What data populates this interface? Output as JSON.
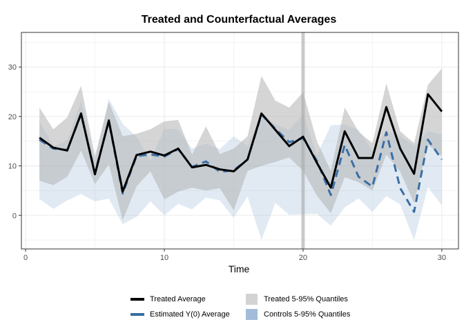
{
  "chart_data": {
    "type": "line",
    "title": "Treated and Counterfactual Averages",
    "xlabel": "Time",
    "ylabel": "",
    "xlim": [
      -0.3,
      31.2
    ],
    "ylim": [
      -6.8,
      37
    ],
    "x_ticks": [
      0,
      10,
      20,
      30
    ],
    "y_ticks": [
      0,
      10,
      20,
      30
    ],
    "grid": true,
    "treatment_time": 20,
    "legend_position": "bottom",
    "x": [
      1,
      2,
      3,
      4,
      5,
      6,
      7,
      8,
      9,
      10,
      11,
      12,
      13,
      14,
      15,
      16,
      17,
      18,
      19,
      20,
      21,
      22,
      23,
      24,
      25,
      26,
      27,
      28,
      29,
      30
    ],
    "series": [
      {
        "name": "Treated Average",
        "color": "#000000",
        "style": "solid",
        "values": [
          15.7,
          13.7,
          13.1,
          20.6,
          8.3,
          19.2,
          4.8,
          12.2,
          12.9,
          12.1,
          13.5,
          9.7,
          10.2,
          9.3,
          8.9,
          11.3,
          20.6,
          17.3,
          14.0,
          15.9,
          10.6,
          5.6,
          17.0,
          11.6,
          11.6,
          21.9,
          13.5,
          8.4,
          24.5,
          21.0
        ]
      },
      {
        "name": "Estimated Y(0) Average",
        "color": "#3a6ea5",
        "style": "dashed",
        "values": [
          15.3,
          13.5,
          13.2,
          20.4,
          8.6,
          19.0,
          4.4,
          12.0,
          12.3,
          11.9,
          13.4,
          9.8,
          10.9,
          8.8,
          9.1,
          11.3,
          20.4,
          17.5,
          14.8,
          15.6,
          11.0,
          4.1,
          14.2,
          7.8,
          5.8,
          16.8,
          5.5,
          0.7,
          15.3,
          11.3
        ]
      }
    ],
    "bands": [
      {
        "name": "Treated 5-95% Quantiles",
        "color": "#b3b3b3",
        "lower": [
          7.0,
          6.1,
          7.8,
          13.1,
          6.3,
          10.3,
          -1.0,
          5.9,
          8.9,
          3.2,
          4.8,
          5.6,
          5.0,
          5.5,
          1.0,
          9.0,
          10.0,
          10.8,
          11.7,
          9.0,
          4.0,
          0.4,
          7.7,
          6.7,
          5.0,
          12.3,
          8.8,
          2.5,
          14.3,
          12.0
        ],
        "upper": [
          21.8,
          17.4,
          19.8,
          26.2,
          12.0,
          23.0,
          16.0,
          16.5,
          17.4,
          19.0,
          19.3,
          12.3,
          18.0,
          12.4,
          13.5,
          16.0,
          28.2,
          23.2,
          21.8,
          24.9,
          15.0,
          9.0,
          21.8,
          16.9,
          14.6,
          26.7,
          17.0,
          14.6,
          26.4,
          29.7
        ]
      },
      {
        "name": "Controls 5-95% Quantiles",
        "color": "#a5bfdb",
        "lower": [
          3.3,
          1.3,
          3.0,
          4.3,
          2.8,
          3.4,
          -1.8,
          -0.3,
          2.8,
          0.0,
          2.3,
          1.2,
          3.6,
          3.0,
          -0.5,
          3.8,
          -5.0,
          2.5,
          0.1,
          0.2,
          0.3,
          -2.1,
          1.6,
          3.4,
          0.7,
          3.9,
          2.2,
          -5.0,
          5.7,
          2.0
        ],
        "upper": [
          19.0,
          14.0,
          15.1,
          23.0,
          10.8,
          23.6,
          18.5,
          15.9,
          11.0,
          17.5,
          17.4,
          13.5,
          14.5,
          13.4,
          16.0,
          14.0,
          20.6,
          18.4,
          17.3,
          20.4,
          12.2,
          18.2,
          18.4,
          17.3,
          13.0,
          17.0,
          16.1,
          14.0,
          17.0,
          16.3
        ]
      }
    ]
  },
  "legend": {
    "items": [
      {
        "label": "Treated Average",
        "kind": "line",
        "color": "#000000"
      },
      {
        "label": "Treated 5-95% Quantiles",
        "kind": "fill",
        "color": "#d3d3d3"
      },
      {
        "label": "Estimated Y(0) Average",
        "kind": "line",
        "color": "#3a6ea5"
      },
      {
        "label": "Controls 5-95% Quantiles",
        "kind": "fill",
        "color": "#a2bcd9"
      }
    ]
  }
}
